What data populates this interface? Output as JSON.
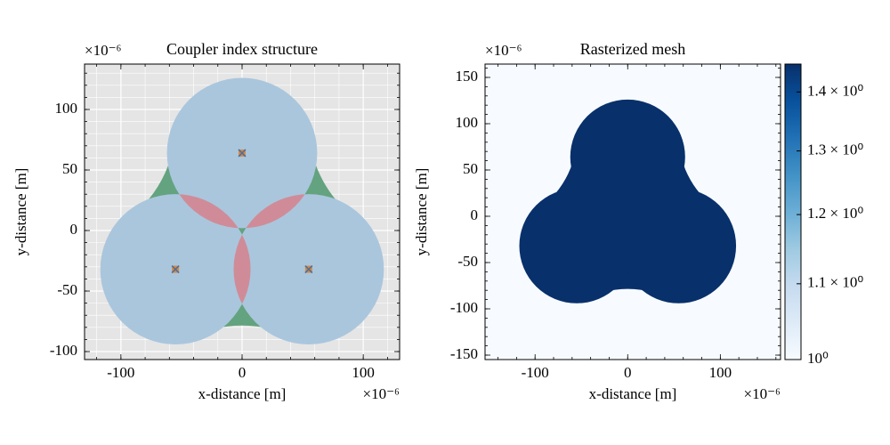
{
  "chart_data": [
    {
      "type": "scatter",
      "title": "Coupler index structure",
      "xlabel": "x-distance [m]",
      "ylabel": "y-distance [m]",
      "x_multiplier": "×10⁻⁶",
      "y_multiplier": "×10⁻⁶",
      "xlim": [
        -130,
        130
      ],
      "ylim": [
        -106.6,
        137.5
      ],
      "xticks": [
        -100,
        0,
        100
      ],
      "yticks": [
        -100,
        -50,
        0,
        50,
        100
      ],
      "grid": true,
      "circles": [
        {
          "x": 0,
          "y": 64,
          "r": 62
        },
        {
          "x": -55,
          "y": -32,
          "r": 62
        },
        {
          "x": 55,
          "y": -32,
          "r": 62
        }
      ],
      "colors": {
        "background": "#e5e5e5",
        "cladding": "#63a37f",
        "core": "#aac6dd",
        "overlap": "#cf8c98",
        "marker": "#d98a3c",
        "marker_cross": "#4a6fa5"
      }
    },
    {
      "type": "heatmap",
      "title": "Rasterized mesh",
      "xlabel": "x-distance [m]",
      "ylabel": "y-distance [m]",
      "x_multiplier": "×10⁻⁶",
      "y_multiplier": "×10⁻⁶",
      "xlim": [
        -154,
        165
      ],
      "ylim": [
        -154.8,
        164.4
      ],
      "xticks": [
        -100,
        0,
        100
      ],
      "yticks": [
        -150,
        -100,
        -50,
        0,
        50,
        100,
        150
      ],
      "grid": false,
      "circles": [
        {
          "x": 0,
          "y": 64,
          "r": 62
        },
        {
          "x": -55,
          "y": -32,
          "r": 62
        },
        {
          "x": 55,
          "y": -32,
          "r": 62
        }
      ],
      "clim": [
        1,
        1.45
      ],
      "colorbar_log": true,
      "cticks": [
        {
          "value": 1,
          "label": "10⁰"
        },
        {
          "value": 1.1,
          "label": "1.1 × 10⁰"
        },
        {
          "value": 1.2,
          "label": "1.2 × 10⁰"
        },
        {
          "value": 1.3,
          "label": "1.3 × 10⁰"
        },
        {
          "value": 1.4,
          "label": "1.4 × 10⁰"
        }
      ],
      "colors": {
        "background": "#f7fbff",
        "structure": "#08306b"
      }
    }
  ]
}
